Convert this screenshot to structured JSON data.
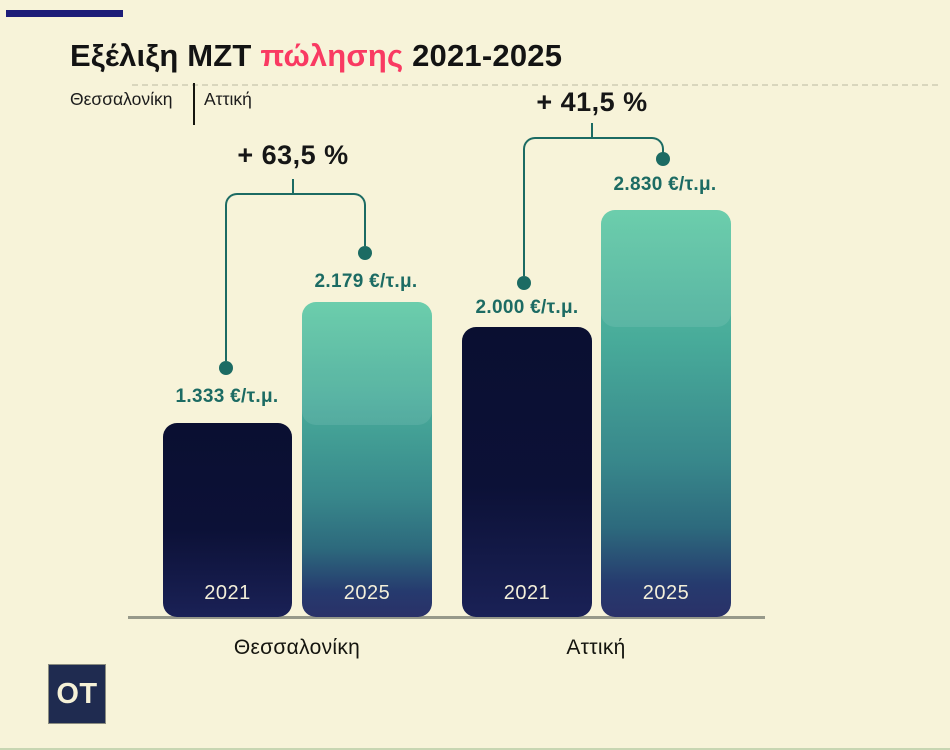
{
  "page": {
    "background": "#f7f3d9",
    "accent_navy": "#0b1135",
    "accent_teal": "#1c6b63",
    "accent_pink": "#f93a62",
    "bar_teal_top": "#5ec9a4"
  },
  "header": {
    "title_part1": "Εξέλιξη ΜΖΤ ",
    "title_highlight": "πώλησης",
    "title_part2": " 2021-2025",
    "legend_left": "Θεσσαλονίκη",
    "legend_right": "Αττική"
  },
  "groups": [
    {
      "name": "Θεσσαλονίκη",
      "pct": "+ 63,5 %",
      "bars": [
        {
          "year": "2021",
          "value": 1333,
          "label": "1.333 €/τ.μ."
        },
        {
          "year": "2025",
          "value": 2179,
          "label": "2.179 €/τ.μ."
        }
      ]
    },
    {
      "name": "Αττική",
      "pct": "+ 41,5 %",
      "bars": [
        {
          "year": "2021",
          "value": 2000,
          "label": "2.000 €/τ.μ."
        },
        {
          "year": "2025",
          "value": 2830,
          "label": "2.830 €/τ.μ."
        }
      ]
    }
  ],
  "logo": {
    "text": "OT"
  },
  "chart_data": {
    "type": "bar",
    "title": "Εξέλιξη ΜΖΤ πώλησης 2021-2025",
    "subtitle_legend": [
      "Θεσσαλονίκη",
      "Αττική"
    ],
    "categories": [
      "Θεσσαλονίκη",
      "Αττική"
    ],
    "series": [
      {
        "name": "2021",
        "values": [
          1333,
          2000
        ]
      },
      {
        "name": "2025",
        "values": [
          2179,
          2830
        ]
      }
    ],
    "unit": "€/τ.μ.",
    "value_labels": [
      [
        "1.333 €/τ.μ.",
        "2.179 €/τ.μ."
      ],
      [
        "2.000 €/τ.μ.",
        "2.830 €/τ.μ."
      ]
    ],
    "annotations": [
      "+ 63,5 %",
      "+ 41,5 %"
    ],
    "ylim": [
      0,
      3000
    ],
    "grid": false,
    "legend_position": "top-left"
  }
}
